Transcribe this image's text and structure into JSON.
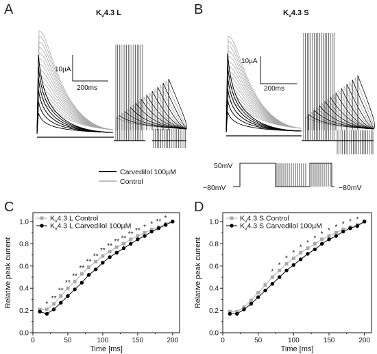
{
  "colors": {
    "carvedilol": "#000000",
    "control": "#a8a8a8"
  },
  "panel_a": {
    "letter": "A",
    "title": "Kv4.3 L",
    "scale_current": "10µA",
    "scale_time": "200ms"
  },
  "panel_b": {
    "letter": "B",
    "title": "Kv4.3 S",
    "scale_current": "10µA",
    "scale_time": "200ms"
  },
  "trace_legend": {
    "carvedilol": "Carvedilol 100µM",
    "control": "Control"
  },
  "protocol": {
    "v_high": "50mV",
    "v_low_left": "−80mV",
    "v_low_right": "−80mV"
  },
  "chart_data": [
    {
      "panel": "C",
      "type": "line",
      "xlabel": "Time [ms]",
      "ylabel": "Relative peak current",
      "xlim": [
        0,
        210
      ],
      "ylim": [
        0.0,
        1.08
      ],
      "xticks": [
        0,
        50,
        100,
        150,
        200
      ],
      "yticks": [
        0.0,
        0.2,
        0.4,
        0.6,
        0.8,
        1.0
      ],
      "x": [
        10,
        20,
        30,
        40,
        50,
        60,
        70,
        80,
        90,
        100,
        110,
        120,
        130,
        140,
        150,
        160,
        170,
        180,
        190,
        200
      ],
      "series": [
        {
          "name": "Kv4.3 L Control",
          "marker": "square",
          "color": "#a8a8a8",
          "values": [
            0.21,
            0.21,
            0.26,
            0.33,
            0.4,
            0.46,
            0.53,
            0.59,
            0.64,
            0.69,
            0.73,
            0.77,
            0.8,
            0.84,
            0.87,
            0.9,
            0.93,
            0.95,
            0.98,
            1.0
          ]
        },
        {
          "name": "Kv4.3 L Carvedilol 100µM",
          "marker": "circle",
          "color": "#000000",
          "values": [
            0.19,
            0.17,
            0.21,
            0.27,
            0.33,
            0.39,
            0.45,
            0.52,
            0.57,
            0.63,
            0.68,
            0.72,
            0.76,
            0.8,
            0.84,
            0.87,
            0.91,
            0.94,
            0.97,
            1.0
          ]
        }
      ],
      "significance": [
        {
          "x": 20,
          "label": "*"
        },
        {
          "x": 30,
          "label": "**"
        },
        {
          "x": 40,
          "label": "**"
        },
        {
          "x": 50,
          "label": "**"
        },
        {
          "x": 60,
          "label": "**"
        },
        {
          "x": 70,
          "label": "**"
        },
        {
          "x": 80,
          "label": "**"
        },
        {
          "x": 90,
          "label": "**"
        },
        {
          "x": 100,
          "label": "**"
        },
        {
          "x": 110,
          "label": "**"
        },
        {
          "x": 120,
          "label": "**"
        },
        {
          "x": 130,
          "label": "**"
        },
        {
          "x": 140,
          "label": "**"
        },
        {
          "x": 150,
          "label": "**"
        },
        {
          "x": 160,
          "label": "*"
        },
        {
          "x": 170,
          "label": "*"
        },
        {
          "x": 180,
          "label": "**"
        },
        {
          "x": 190,
          "label": "*"
        }
      ],
      "legend_position": "top-left"
    },
    {
      "panel": "D",
      "type": "line",
      "xlabel": "Time [ms]",
      "ylabel": "Relative peak current",
      "xlim": [
        0,
        210
      ],
      "ylim": [
        0.0,
        1.08
      ],
      "xticks": [
        0,
        50,
        100,
        150,
        200
      ],
      "yticks": [
        0.0,
        0.2,
        0.4,
        0.6,
        0.8,
        1.0
      ],
      "x": [
        10,
        20,
        30,
        40,
        50,
        60,
        70,
        80,
        90,
        100,
        110,
        120,
        130,
        140,
        150,
        160,
        170,
        180,
        190,
        200
      ],
      "series": [
        {
          "name": "Kv4.3 S Control",
          "marker": "square",
          "color": "#a8a8a8",
          "values": [
            0.19,
            0.19,
            0.23,
            0.29,
            0.36,
            0.43,
            0.5,
            0.56,
            0.62,
            0.67,
            0.72,
            0.76,
            0.8,
            0.84,
            0.87,
            0.9,
            0.93,
            0.95,
            0.97,
            1.0
          ]
        },
        {
          "name": "Kv4.3 S Carvedilol 100µM",
          "marker": "circle",
          "color": "#000000",
          "values": [
            0.17,
            0.17,
            0.21,
            0.26,
            0.32,
            0.38,
            0.44,
            0.5,
            0.56,
            0.61,
            0.66,
            0.71,
            0.75,
            0.8,
            0.84,
            0.87,
            0.91,
            0.94,
            0.96,
            1.0
          ]
        }
      ],
      "significance": [
        {
          "x": 70,
          "label": "*"
        },
        {
          "x": 80,
          "label": "*"
        },
        {
          "x": 90,
          "label": "*"
        },
        {
          "x": 100,
          "label": "*"
        },
        {
          "x": 110,
          "label": "*"
        },
        {
          "x": 120,
          "label": "*"
        },
        {
          "x": 130,
          "label": "*"
        },
        {
          "x": 140,
          "label": "*"
        },
        {
          "x": 150,
          "label": "*"
        },
        {
          "x": 160,
          "label": "*"
        },
        {
          "x": 170,
          "label": "*"
        },
        {
          "x": 180,
          "label": "*"
        },
        {
          "x": 190,
          "label": "*"
        }
      ],
      "legend_position": "top-left"
    }
  ]
}
